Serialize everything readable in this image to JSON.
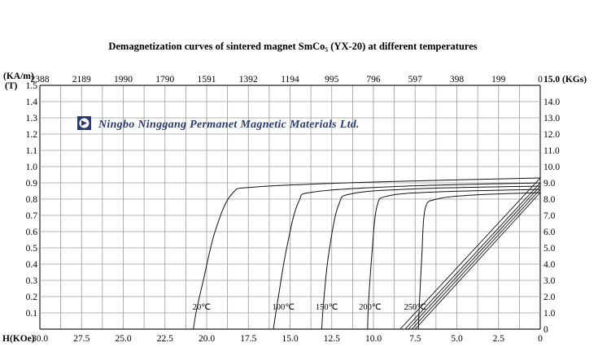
{
  "chart_data": {
    "type": "line",
    "title": "Demagnetization curves of sintered magnet SmCo₅ (YX-20) at different temperatures",
    "xlabel": "H(KOe)",
    "xlabel_top": "(KA/m)",
    "ylabel_left": "(T)",
    "ylabel_right": "15.0 (KGs)",
    "xlim": [
      30,
      0
    ],
    "ylim": [
      0,
      1.5
    ],
    "x_ticks": [
      "30.0",
      "27.5",
      "25.0",
      "22.5",
      "20.0",
      "17.5",
      "15.0",
      "12.5",
      "10.0",
      "7.5",
      "5.0",
      "2.5",
      "0"
    ],
    "x_ticks_top": [
      "2388",
      "2189",
      "1990",
      "1790",
      "1591",
      "1392",
      "1194",
      "995",
      "796",
      "597",
      "398",
      "199",
      "0"
    ],
    "y_ticks_left": [
      "0.1",
      "0.2",
      "0.3",
      "0.4",
      "0.5",
      "0.6",
      "0.7",
      "0.8",
      "0.9",
      "1.0",
      "1.1",
      "1.2",
      "1.3",
      "1.4",
      "1.5"
    ],
    "y_ticks_right": [
      "0",
      "1.0",
      "2.0",
      "3.0",
      "4.0",
      "5.0",
      "6.0",
      "7.0",
      "8.0",
      "9.0",
      "10.0",
      "11.0",
      "12.0",
      "13.0",
      "14.0"
    ],
    "grid": true,
    "series": [
      {
        "name": "20℃",
        "label_at": [
          20.3,
          0.12
        ],
        "j_curve": [
          [
            0,
            0.93
          ],
          [
            10,
            0.905
          ],
          [
            17,
            0.875
          ],
          [
            18.5,
            0.83
          ],
          [
            19.5,
            0.6
          ],
          [
            20.2,
            0.3
          ],
          [
            20.6,
            0.12
          ],
          [
            20.8,
            0.0
          ]
        ],
        "b_line": [
          [
            0,
            0.93
          ],
          [
            8.4,
            0.0
          ]
        ]
      },
      {
        "name": "100℃",
        "label_at": [
          15.4,
          0.12
        ],
        "j_curve": [
          [
            0,
            0.9
          ],
          [
            8,
            0.88
          ],
          [
            13.5,
            0.845
          ],
          [
            14.5,
            0.78
          ],
          [
            15.2,
            0.5
          ],
          [
            15.7,
            0.2
          ],
          [
            16.0,
            0.0
          ]
        ],
        "b_line": [
          [
            0,
            0.9
          ],
          [
            8.1,
            0.0
          ]
        ]
      },
      {
        "name": "150℃",
        "label_at": [
          12.8,
          0.12
        ],
        "j_curve": [
          [
            0,
            0.88
          ],
          [
            7,
            0.865
          ],
          [
            11.2,
            0.835
          ],
          [
            12.1,
            0.76
          ],
          [
            12.7,
            0.45
          ],
          [
            13.0,
            0.15
          ],
          [
            13.1,
            0.0
          ]
        ],
        "b_line": [
          [
            0,
            0.88
          ],
          [
            7.9,
            0.0
          ]
        ]
      },
      {
        "name": "200℃",
        "label_at": [
          10.2,
          0.12
        ],
        "j_curve": [
          [
            0,
            0.86
          ],
          [
            6,
            0.845
          ],
          [
            9.1,
            0.82
          ],
          [
            9.8,
            0.75
          ],
          [
            10.1,
            0.45
          ],
          [
            10.3,
            0.15
          ],
          [
            10.35,
            0.0
          ]
        ],
        "b_line": [
          [
            0,
            0.86
          ],
          [
            7.7,
            0.0
          ]
        ]
      },
      {
        "name": "250℃",
        "label_at": [
          7.5,
          0.12
        ],
        "j_curve": [
          [
            0,
            0.84
          ],
          [
            4,
            0.825
          ],
          [
            6.2,
            0.8
          ],
          [
            6.9,
            0.74
          ],
          [
            7.1,
            0.45
          ],
          [
            7.25,
            0.15
          ],
          [
            7.3,
            0.0
          ]
        ],
        "b_line": [
          [
            0,
            0.84
          ],
          [
            7.5,
            0.0
          ]
        ]
      }
    ]
  },
  "watermark": {
    "company": "Ningbo Ninggang Permanet Magnetic Materials Ltd."
  }
}
